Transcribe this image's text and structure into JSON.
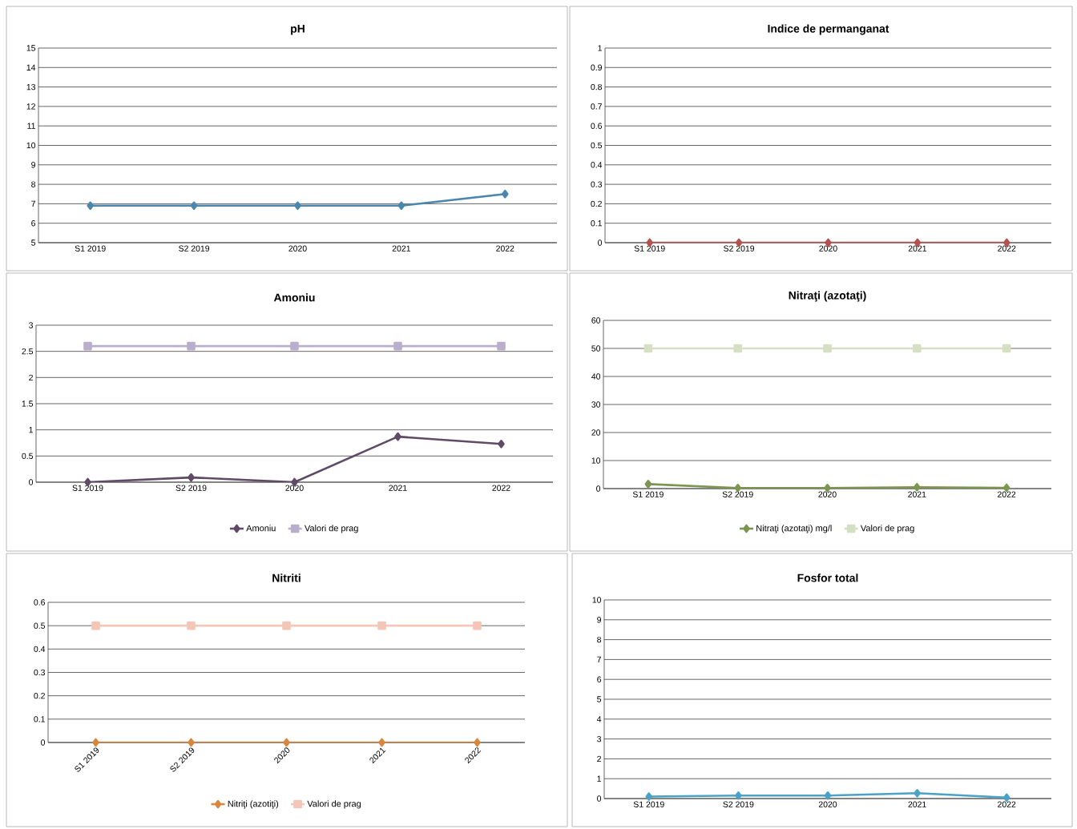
{
  "chart_data": [
    {
      "type": "line",
      "title": "pH",
      "categories": [
        "S1 2019",
        "S2 2019",
        "2020",
        "2021",
        "2022"
      ],
      "ylim": [
        5,
        15
      ],
      "yticks": [
        5,
        6,
        7,
        8,
        9,
        10,
        11,
        12,
        13,
        14,
        15
      ],
      "grid": "y",
      "marker": "diamond",
      "series": [
        {
          "color": "#4a86ad",
          "values": [
            6.9,
            6.9,
            6.9,
            6.9,
            7.5
          ]
        }
      ]
    },
    {
      "type": "line",
      "title": "Indice de permanganat",
      "categories": [
        "S1 2019",
        "S2 2019",
        "2020",
        "2021",
        "2022"
      ],
      "ylim": [
        0,
        1
      ],
      "yticks": [
        0,
        0.1,
        0.2,
        0.3,
        0.4,
        0.5,
        0.6,
        0.7,
        0.8,
        0.9,
        1
      ],
      "grid": "y",
      "marker": "diamond",
      "series": [
        {
          "color": "#b5524f",
          "values": [
            0,
            0,
            0,
            0,
            0
          ]
        }
      ]
    },
    {
      "type": "line",
      "title": "Amoniu",
      "categories": [
        "S1 2019",
        "S2 2019",
        "2020",
        "2021",
        "2022"
      ],
      "ylim": [
        0,
        3
      ],
      "yticks": [
        0,
        0.5,
        1,
        1.5,
        2,
        2.5,
        3
      ],
      "grid": "y",
      "legend": "bottom",
      "series": [
        {
          "name": "Amoniu",
          "color": "#5f4b68",
          "marker": "diamond",
          "values": [
            0,
            0.09,
            0,
            0.87,
            0.73
          ]
        },
        {
          "name": "Valori de prag",
          "color": "#b9aecb",
          "marker": "square",
          "values": [
            2.6,
            2.6,
            2.6,
            2.6,
            2.6
          ]
        }
      ]
    },
    {
      "type": "line",
      "title": "Nitraţi (azotaţi)",
      "categories": [
        "S1 2019",
        "S2 2019",
        "2020",
        "2021",
        "2022"
      ],
      "ylim": [
        0,
        60
      ],
      "yticks": [
        0,
        10,
        20,
        30,
        40,
        50,
        60
      ],
      "grid": "y",
      "legend": "bottom",
      "series": [
        {
          "name": "Nitraţi (azotaţi) mg/l",
          "color": "#7b9650",
          "marker": "diamond",
          "values": [
            1.6,
            0.2,
            0.2,
            0.5,
            0.3
          ]
        },
        {
          "name": "Valori de prag",
          "color": "#d5dfc2",
          "marker": "square",
          "values": [
            50,
            50,
            50,
            50,
            50
          ]
        }
      ]
    },
    {
      "type": "line",
      "title": "Nitriti",
      "categories": [
        "S1 2019",
        "S2 2019",
        "2020",
        "2021",
        "2022"
      ],
      "ylim": [
        0,
        0.6
      ],
      "yticks": [
        0,
        0.1,
        0.2,
        0.3,
        0.4,
        0.5,
        0.6
      ],
      "grid": "y",
      "legend": "bottom",
      "series": [
        {
          "name": "Nitriţi (azotiţi)",
          "color": "#d8873f",
          "marker": "diamond",
          "values": [
            0,
            0,
            0,
            0,
            0
          ]
        },
        {
          "name": "Valori de prag",
          "color": "#f4c6b8",
          "marker": "square",
          "values": [
            0.5,
            0.5,
            0.5,
            0.5,
            0.5
          ]
        }
      ]
    },
    {
      "type": "line",
      "title": "Fosfor total",
      "categories": [
        "S1 2019",
        "S2 2019",
        "2020",
        "2021",
        "2022"
      ],
      "ylim": [
        0,
        10
      ],
      "yticks": [
        0,
        1,
        2,
        3,
        4,
        5,
        6,
        7,
        8,
        9,
        10
      ],
      "grid": "y",
      "marker": "diamond",
      "series": [
        {
          "color": "#4aa2c6",
          "values": [
            0.1,
            0.15,
            0.15,
            0.27,
            0.05
          ]
        }
      ]
    }
  ]
}
